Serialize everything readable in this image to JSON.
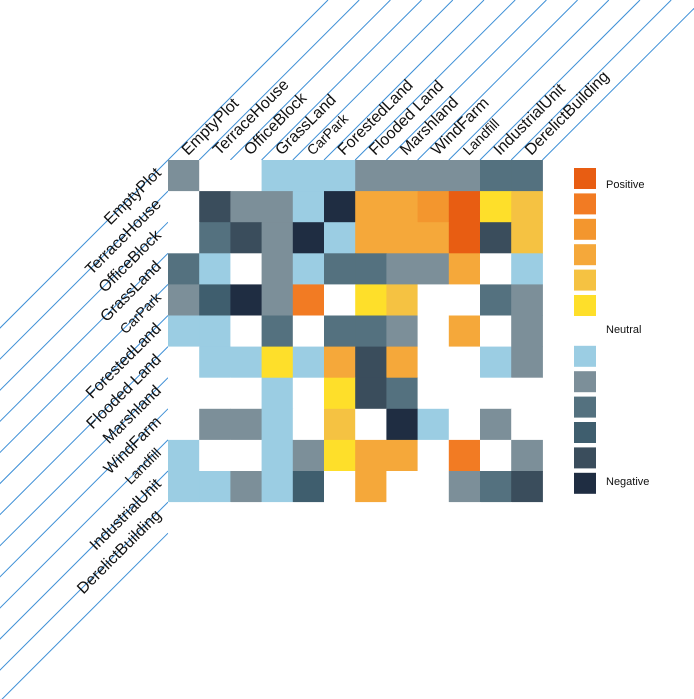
{
  "chart_data": {
    "type": "heatmap",
    "rows": [
      "EmptyPlot",
      "TerraceHouse",
      "OfficeBlock",
      "GrassLand",
      "CarPark",
      "ForestedLand",
      "Flooded Land",
      "Marshland",
      "WindFarm",
      "Landfill",
      "IndustrialUnit",
      "DerelictBuilding"
    ],
    "columns": [
      "EmptyPlot",
      "TerraceHouse",
      "OfficeBlock",
      "GrassLand",
      "CarPark",
      "ForestedLand",
      "Flooded Land",
      "Marshland",
      "WindFarm",
      "Landfill",
      "IndustrialUnit",
      "DerelictBuilding"
    ],
    "scale": {
      "min": -6,
      "max": 6,
      "neutral": 0
    },
    "colors": {
      "6": "#E85D12",
      "5": "#F27B23",
      "4": "#F3962E",
      "3": "#F5A83A",
      "2": "#F5C242",
      "1": "#FEDF2A",
      "0": "#FFFFFF",
      "-1": "#9BCDE3",
      "-2": "#7C8F99",
      "-3": "#54717F",
      "-4": "#3F5E6E",
      "-5": "#3A4D5C",
      "-6": "#1F2D42"
    },
    "values": [
      [
        -2,
        0,
        0,
        -1,
        -1,
        -1,
        -2,
        -2,
        -2,
        -2,
        -3,
        -3
      ],
      [
        0,
        -5,
        -2,
        -2,
        -1,
        -6,
        3,
        3,
        4,
        6,
        1,
        2
      ],
      [
        0,
        -3,
        -5,
        -2,
        -6,
        -1,
        3,
        3,
        3,
        6,
        -5,
        2
      ],
      [
        -3,
        -1,
        0,
        -2,
        -1,
        -3,
        -3,
        -2,
        -2,
        3,
        0,
        -1
      ],
      [
        -2,
        -4,
        -6,
        -2,
        5,
        0,
        1,
        2,
        0,
        0,
        -3,
        -2
      ],
      [
        -1,
        -1,
        0,
        -3,
        0,
        -3,
        -3,
        -2,
        0,
        3,
        0,
        -2
      ],
      [
        0,
        -1,
        -1,
        1,
        -1,
        3,
        -5,
        3,
        0,
        0,
        -1,
        -2
      ],
      [
        0,
        0,
        0,
        -1,
        0,
        1,
        -5,
        -3,
        0,
        0,
        0,
        0
      ],
      [
        0,
        -2,
        -2,
        -1,
        0,
        2,
        0,
        -6,
        -1,
        0,
        -2,
        0
      ],
      [
        -1,
        0,
        0,
        -1,
        -2,
        1,
        3,
        3,
        0,
        5,
        0,
        -2
      ],
      [
        -1,
        -1,
        -2,
        -1,
        -4,
        0,
        3,
        0,
        0,
        -2,
        -3,
        -5
      ],
      [
        0,
        0,
        0,
        0,
        0,
        0,
        0,
        0,
        0,
        0,
        0,
        0
      ]
    ],
    "legend": {
      "positive_label": "Positive",
      "neutral_label": "Neutral",
      "negative_label": "Negative",
      "steps": [
        6,
        5,
        4,
        3,
        2,
        1,
        0,
        -1,
        -2,
        -3,
        -4,
        -5,
        -6
      ]
    },
    "grid": false
  }
}
